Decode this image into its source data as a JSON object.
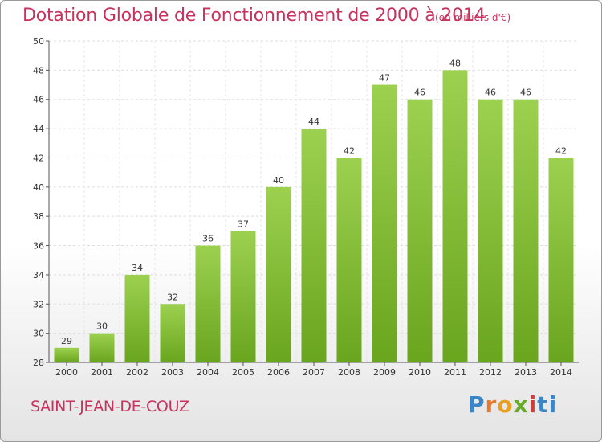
{
  "chart_data": {
    "type": "bar",
    "title": "Dotation Globale de Fonctionnement de 2000 à 2014",
    "subtitle": "(en milliers d'€)",
    "categories": [
      "2000",
      "2001",
      "2002",
      "2003",
      "2004",
      "2005",
      "2006",
      "2007",
      "2008",
      "2009",
      "2010",
      "2011",
      "2012",
      "2013",
      "2014"
    ],
    "values": [
      29,
      30,
      34,
      32,
      36,
      37,
      40,
      44,
      42,
      47,
      46,
      48,
      46,
      46,
      42
    ],
    "ylim": [
      28,
      50
    ],
    "yticks": [
      28,
      30,
      32,
      34,
      36,
      38,
      40,
      42,
      44,
      46,
      48,
      50
    ],
    "grid": true,
    "bar_color": "#86c232"
  },
  "commune": "SAINT-JEAN-DE-COUZ",
  "logo": [
    "P",
    "r",
    "o",
    "x",
    "i",
    "ti"
  ]
}
